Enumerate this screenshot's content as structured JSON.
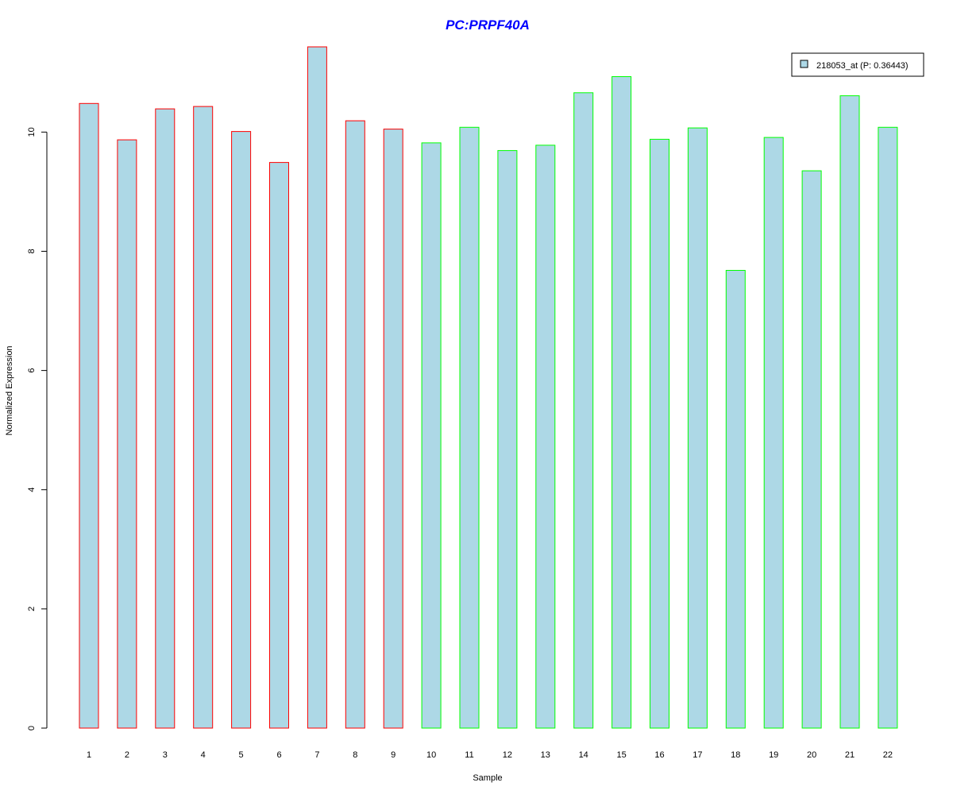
{
  "chart_data": {
    "type": "bar",
    "title": "PC:PRPF40A",
    "xlabel": "Sample",
    "ylabel": "Normalized Expression",
    "categories": [
      "1",
      "2",
      "3",
      "4",
      "5",
      "6",
      "7",
      "8",
      "9",
      "10",
      "11",
      "12",
      "13",
      "14",
      "15",
      "16",
      "17",
      "18",
      "19",
      "20",
      "21",
      "22"
    ],
    "values": [
      10.48,
      9.87,
      10.39,
      10.43,
      10.01,
      9.49,
      11.43,
      10.19,
      10.05,
      9.82,
      10.08,
      9.69,
      9.78,
      10.66,
      10.93,
      9.88,
      10.07,
      7.68,
      9.91,
      9.35,
      10.61,
      10.08
    ],
    "groups": [
      "red",
      "red",
      "red",
      "red",
      "red",
      "red",
      "red",
      "red",
      "red",
      "green",
      "green",
      "green",
      "green",
      "green",
      "green",
      "green",
      "green",
      "green",
      "green",
      "green",
      "green",
      "green"
    ],
    "yticks": [
      0,
      2,
      4,
      6,
      8,
      10
    ],
    "ylim": [
      0,
      11.43
    ],
    "legend": {
      "label": "218053_at (P: 0.36443)",
      "position": "top-right"
    },
    "colors": {
      "fill": "#add8e6",
      "border_red": "#ff0000",
      "border_green": "#00ff00",
      "title": "#0000ff"
    }
  }
}
